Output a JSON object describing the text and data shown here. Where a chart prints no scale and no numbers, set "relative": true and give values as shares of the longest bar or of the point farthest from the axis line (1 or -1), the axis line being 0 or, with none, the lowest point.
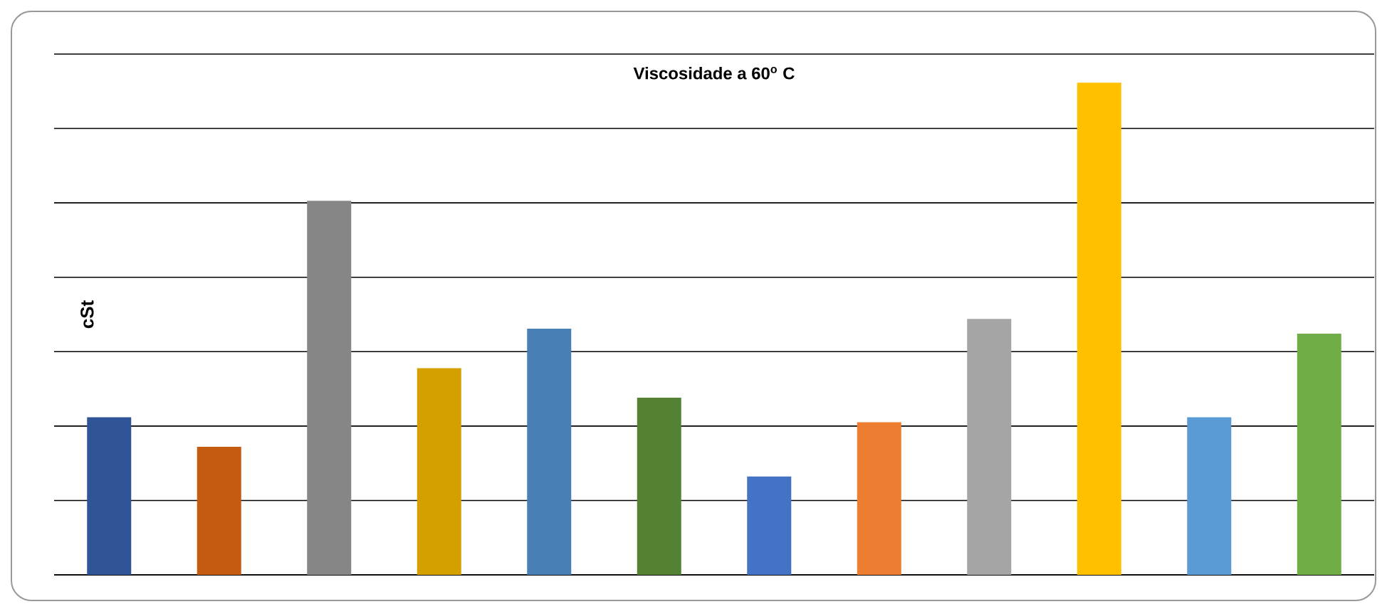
{
  "chart_data": {
    "type": "bar",
    "title": "**Viscosidade a 60$^{o}$ C**",
    "ylabel": "cSt",
    "relative": true,
    "grid": "y",
    "categories": [
      null,
      null,
      null,
      null,
      null,
      null,
      null,
      null,
      null,
      null,
      null,
      null
    ],
    "values": [
      0.32,
      0.26,
      0.76,
      0.42,
      0.5,
      0.36,
      0.2,
      0.31,
      0.52,
      1,
      0.32,
      0.49
    ],
    "colors": [
      "#2f5597",
      "#c55a11",
      "#868686",
      "#d4a000",
      "#4a7fb5",
      "#548235",
      "#4472c4",
      "#ed7d31",
      "#a5a5a5",
      "#ffc000",
      "#5b9bd5",
      "#70ad47"
    ]
  }
}
